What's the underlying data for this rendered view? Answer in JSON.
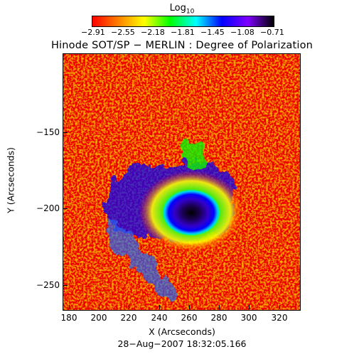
{
  "colorbar": {
    "title": "Log",
    "title_sub": "10",
    "tick_labels": [
      "−2.91",
      "−2.55",
      "−2.18",
      "−1.81",
      "−1.45",
      "−1.08",
      "−0.71"
    ],
    "gradient_colors": [
      "#ff0000",
      "#ff7f00",
      "#ffff00",
      "#00ff00",
      "#00ffff",
      "#0000ff",
      "#7f00ff",
      "#000000"
    ]
  },
  "title": "Hinode SOT/SP − MERLIN : Degree of Polarization",
  "x_axis": {
    "label": "X (Arcseconds)",
    "ticks": [
      "180",
      "200",
      "220",
      "240",
      "260",
      "280",
      "300",
      "320"
    ]
  },
  "y_axis": {
    "label": "Y (Arcseconds)",
    "ticks": [
      "−150",
      "−200",
      "−250"
    ]
  },
  "timestamp": "28−Aug−2007 18:32:05.166"
}
